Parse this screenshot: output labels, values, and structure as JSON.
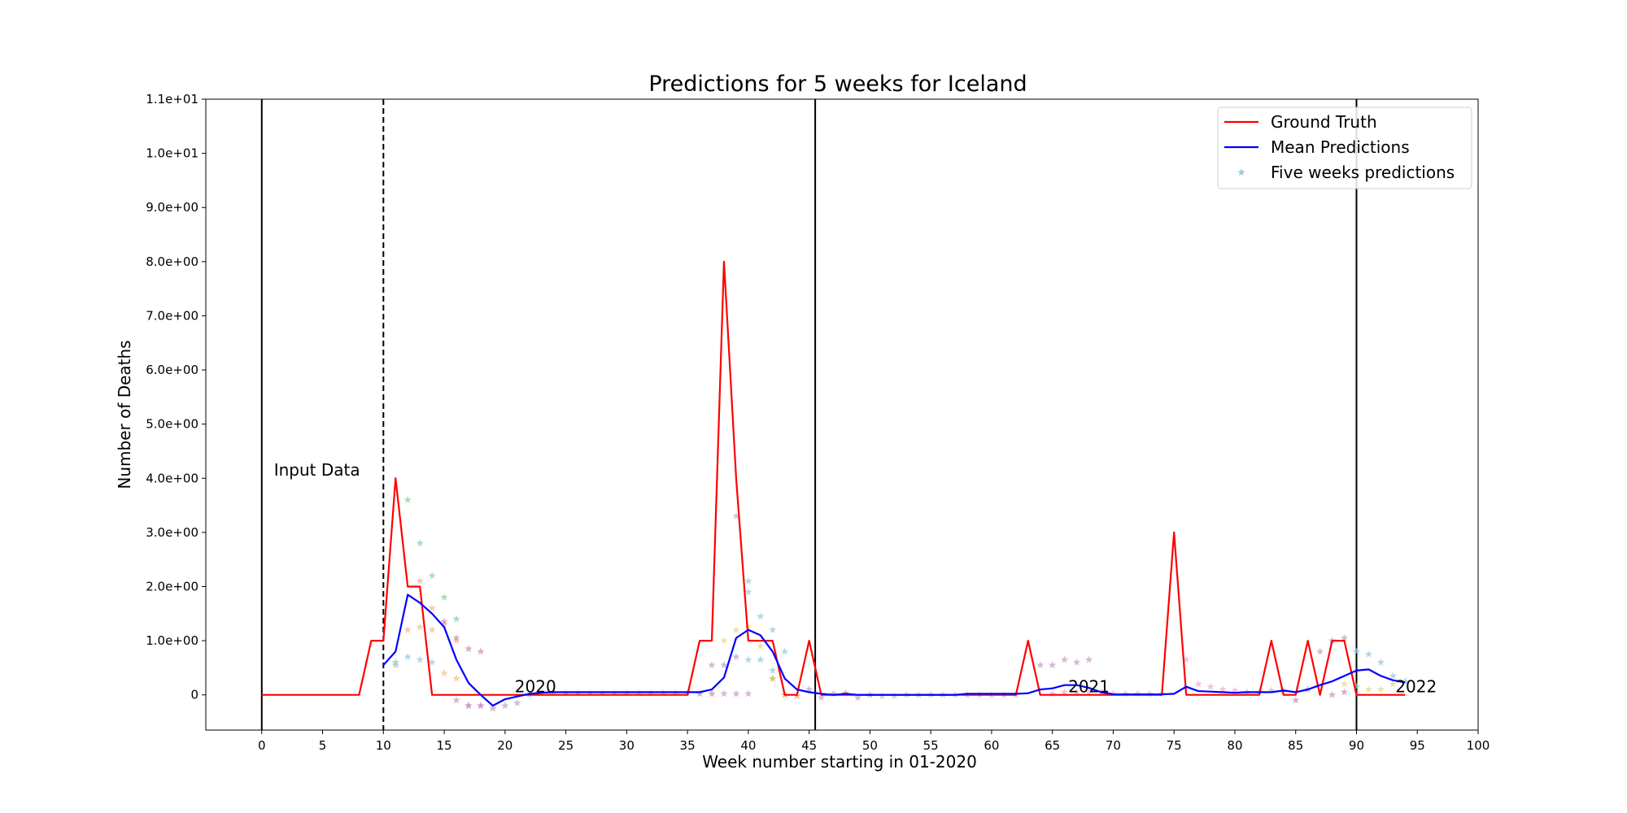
{
  "chart_data": {
    "type": "line",
    "title": "Predictions for 5 weeks for Iceland",
    "xlabel": "Week number starting in 01-2020",
    "ylabel": "Number of Deaths",
    "xlim": [
      -4.6,
      100
    ],
    "ylim": [
      -0.65,
      11
    ],
    "x_ticks": [
      0,
      5,
      10,
      15,
      20,
      25,
      30,
      35,
      40,
      45,
      50,
      55,
      60,
      65,
      70,
      75,
      80,
      85,
      90,
      95,
      100
    ],
    "y_ticks": [
      0,
      1,
      2,
      3,
      4,
      5,
      6,
      7,
      8,
      9,
      10,
      11
    ],
    "y_tick_labels": [
      "0",
      "1.0e+00",
      "2.0e+00",
      "3.0e+00",
      "4.0e+00",
      "5.0e+00",
      "6.0e+00",
      "7.0e+00",
      "8.0e+00",
      "9.0e+00",
      "1.0e+01",
      "1.1e+01"
    ],
    "grid": false,
    "legend_position": "upper right",
    "series": [
      {
        "name": "Ground Truth",
        "color": "#ff0000",
        "style": "line",
        "x": [
          0,
          1,
          2,
          3,
          4,
          5,
          6,
          7,
          8,
          9,
          10,
          11,
          12,
          13,
          14,
          15,
          16,
          17,
          18,
          19,
          20,
          21,
          22,
          23,
          24,
          25,
          26,
          27,
          28,
          29,
          30,
          31,
          32,
          33,
          34,
          35,
          36,
          37,
          38,
          39,
          40,
          41,
          42,
          43,
          44,
          45,
          46,
          47,
          48,
          49,
          50,
          51,
          52,
          53,
          54,
          55,
          56,
          57,
          58,
          59,
          60,
          61,
          62,
          63,
          64,
          65,
          66,
          67,
          68,
          69,
          70,
          71,
          72,
          73,
          74,
          75,
          76,
          77,
          78,
          79,
          80,
          81,
          82,
          83,
          84,
          85,
          86,
          87,
          88,
          89,
          90,
          91,
          92,
          93,
          94
        ],
        "values": [
          0,
          0,
          0,
          0,
          0,
          0,
          0,
          0,
          0,
          1,
          1,
          4,
          2,
          2,
          0,
          0,
          0,
          0,
          0,
          0,
          0,
          0,
          0,
          0,
          0,
          0,
          0,
          0,
          0,
          0,
          0,
          0,
          0,
          0,
          0,
          0,
          1,
          1,
          8,
          4,
          1,
          1,
          1,
          0,
          0,
          1,
          0,
          0,
          0,
          0,
          0,
          0,
          0,
          0,
          0,
          0,
          0,
          0,
          0,
          0,
          0,
          0,
          0,
          1,
          0,
          0,
          0,
          0,
          0,
          0,
          0,
          0,
          0,
          0,
          0,
          3,
          0,
          0,
          0,
          0,
          0,
          0,
          0,
          1,
          0,
          0,
          1,
          0,
          1,
          1,
          0,
          0,
          0,
          0,
          0
        ]
      },
      {
        "name": "Mean Predictions",
        "color": "#0000ff",
        "style": "line",
        "x": [
          10,
          11,
          12,
          13,
          14,
          15,
          16,
          17,
          18,
          19,
          20,
          21,
          22,
          23,
          24,
          25,
          26,
          27,
          28,
          29,
          30,
          31,
          32,
          33,
          34,
          35,
          36,
          37,
          38,
          39,
          40,
          41,
          42,
          43,
          44,
          45,
          46,
          47,
          48,
          49,
          50,
          51,
          52,
          53,
          54,
          55,
          56,
          57,
          58,
          59,
          60,
          61,
          62,
          63,
          64,
          65,
          66,
          67,
          68,
          69,
          70,
          71,
          72,
          73,
          74,
          75,
          76,
          77,
          78,
          79,
          80,
          81,
          82,
          83,
          84,
          85,
          86,
          87,
          88,
          89,
          90,
          91,
          92,
          93,
          94
        ],
        "values": [
          0.55,
          0.8,
          1.85,
          1.7,
          1.5,
          1.25,
          0.65,
          0.22,
          0,
          -0.2,
          -0.08,
          -0.03,
          0.02,
          0.04,
          0.05,
          0.05,
          0.05,
          0.05,
          0.05,
          0.05,
          0.05,
          0.05,
          0.05,
          0.05,
          0.05,
          0.05,
          0.05,
          0.1,
          0.32,
          1.05,
          1.2,
          1.1,
          0.8,
          0.3,
          0.1,
          0.05,
          0.02,
          0,
          0.02,
          0,
          0,
          0,
          0,
          0,
          0,
          0,
          0,
          0,
          0.02,
          0.02,
          0.02,
          0.02,
          0.02,
          0.03,
          0.1,
          0.12,
          0.18,
          0.18,
          0.13,
          0.05,
          0.01,
          0.01,
          0.01,
          0.01,
          0.01,
          0.02,
          0.15,
          0.07,
          0.06,
          0.05,
          0.04,
          0.05,
          0.05,
          0.05,
          0.08,
          0.05,
          0.1,
          0.18,
          0.25,
          0.35,
          0.45,
          0.47,
          0.35,
          0.27,
          0.23
        ]
      },
      {
        "name": "Five weeks predictions",
        "color": "#9ecae1",
        "style": "star-markers",
        "points": [
          [
            11,
            0.6,
            "#8fd3a0"
          ],
          [
            12,
            3.6,
            "#8fd3a0"
          ],
          [
            13,
            2.8,
            "#8fd3a0"
          ],
          [
            14,
            2.2,
            "#8fd3a0"
          ],
          [
            15,
            1.8,
            "#8fd3a0"
          ],
          [
            16,
            1.4,
            "#8fd3a0"
          ],
          [
            12,
            1.2,
            "#f5b8a0"
          ],
          [
            13,
            2.1,
            "#f5b8a0"
          ],
          [
            14,
            1.6,
            "#f5b8a0"
          ],
          [
            15,
            1.3,
            "#f5b8a0"
          ],
          [
            16,
            1.0,
            "#f5b8a0"
          ],
          [
            11,
            0.55,
            "#9ecae1"
          ],
          [
            12,
            0.7,
            "#9ecae1"
          ],
          [
            13,
            0.65,
            "#9ecae1"
          ],
          [
            14,
            0.6,
            "#9ecae1"
          ],
          [
            13,
            1.25,
            "#e8c890"
          ],
          [
            14,
            1.2,
            "#e8c890"
          ],
          [
            15,
            0.4,
            "#e8c890"
          ],
          [
            16,
            0.3,
            "#e8c890"
          ],
          [
            16,
            -0.1,
            "#c9a0c9"
          ],
          [
            17,
            -0.2,
            "#c9a0c9"
          ],
          [
            18,
            -0.2,
            "#c9a0c9"
          ],
          [
            19,
            -0.25,
            "#c9a0c9"
          ],
          [
            20,
            -0.2,
            "#c9a0c9"
          ],
          [
            21,
            -0.15,
            "#c9a0c9"
          ],
          [
            15,
            1.35,
            "#d090b8"
          ],
          [
            16,
            1.05,
            "#d090b8"
          ],
          [
            17,
            0.85,
            "#d090b8"
          ],
          [
            18,
            0.8,
            "#d090b8"
          ],
          [
            17,
            -0.2,
            "#d090b8"
          ],
          [
            18,
            -0.2,
            "#d090b8"
          ],
          [
            22,
            0,
            "#c0c0d0"
          ],
          [
            23,
            0.03,
            "#c0c0d0"
          ],
          [
            24,
            0.03,
            "#c0c0d0"
          ],
          [
            25,
            0.03,
            "#c0c0d0"
          ],
          [
            26,
            0.03,
            "#c0c0d0"
          ],
          [
            27,
            0.03,
            "#c0c0d0"
          ],
          [
            28,
            0.03,
            "#c0c0d0"
          ],
          [
            29,
            0.03,
            "#c0c0d0"
          ],
          [
            30,
            0.03,
            "#c0c0d0"
          ],
          [
            31,
            0.03,
            "#c0c0d0"
          ],
          [
            32,
            0.03,
            "#c0c0d0"
          ],
          [
            33,
            0.03,
            "#c0c0d0"
          ],
          [
            34,
            0.03,
            "#c0c0d0"
          ],
          [
            35,
            0.03,
            "#c0c0d0"
          ],
          [
            37,
            0.55,
            "#c9a0c9"
          ],
          [
            38,
            0.55,
            "#c9a0c9"
          ],
          [
            39,
            0.7,
            "#c9a0c9"
          ],
          [
            38,
            0.02,
            "#c9a0c9"
          ],
          [
            39,
            0.02,
            "#c9a0c9"
          ],
          [
            40,
            0.02,
            "#c9a0c9"
          ],
          [
            38,
            1.0,
            "#e8d890"
          ],
          [
            39,
            1.2,
            "#e8d890"
          ],
          [
            40,
            1.25,
            "#e8d890"
          ],
          [
            41,
            0.9,
            "#e8d890"
          ],
          [
            42,
            0.3,
            "#b8b850"
          ],
          [
            39,
            3.3,
            "#9ecae1"
          ],
          [
            40,
            2.1,
            "#9ecae1"
          ],
          [
            40,
            1.9,
            "#9ecae1"
          ],
          [
            41,
            1.45,
            "#9ecae1"
          ],
          [
            42,
            1.2,
            "#9ecae1"
          ],
          [
            42,
            0.45,
            "#9ecae1"
          ],
          [
            43,
            0.8,
            "#9ecae1"
          ],
          [
            40,
            0.65,
            "#9ecae1"
          ],
          [
            41,
            0.65,
            "#9ecae1"
          ],
          [
            37,
            0.02,
            "#d090b8"
          ],
          [
            36,
            0.02,
            "#d090b8"
          ],
          [
            43,
            0,
            "#e8a060"
          ],
          [
            44,
            -0.02,
            "#e8a060"
          ],
          [
            45,
            0.1,
            "#c9a0c9"
          ],
          [
            46,
            -0.05,
            "#c9a0c9"
          ],
          [
            47,
            0.02,
            "#c9a0c9"
          ],
          [
            48,
            0.03,
            "#c9a0c9"
          ],
          [
            49,
            -0.05,
            "#c9a0c9"
          ],
          [
            50,
            0,
            "#c9a0c9"
          ],
          [
            51,
            -0.02,
            "#c0c0d0"
          ],
          [
            52,
            -0.02,
            "#c0c0d0"
          ],
          [
            53,
            0.0,
            "#c0c0d0"
          ],
          [
            54,
            0.0,
            "#c0c0d0"
          ],
          [
            55,
            0.0,
            "#c0c0d0"
          ],
          [
            56,
            0.0,
            "#c0c0d0"
          ],
          [
            57,
            0.0,
            "#c0c0d0"
          ],
          [
            58,
            0.0,
            "#c0c0d0"
          ],
          [
            59,
            0.0,
            "#c0c0d0"
          ],
          [
            60,
            0.0,
            "#c0c0d0"
          ],
          [
            61,
            0.0,
            "#c0c0d0"
          ],
          [
            62,
            0.0,
            "#c0c0d0"
          ],
          [
            64,
            0.55,
            "#c9a0c9"
          ],
          [
            65,
            0.55,
            "#c9a0c9"
          ],
          [
            66,
            0.65,
            "#c9a0c9"
          ],
          [
            67,
            0.6,
            "#c9a0c9"
          ],
          [
            68,
            0.65,
            "#c9a0c9"
          ],
          [
            65,
            0.02,
            "#f0b0d0"
          ],
          [
            66,
            0.05,
            "#f0b0d0"
          ],
          [
            67,
            0.05,
            "#f0b0d0"
          ],
          [
            68,
            0.05,
            "#f0b0d0"
          ],
          [
            69,
            0.05,
            "#f0b0d0"
          ],
          [
            70,
            0.03,
            "#f0b0d0"
          ],
          [
            71,
            0.02,
            "#c0c0d0"
          ],
          [
            72,
            0.02,
            "#c0c0d0"
          ],
          [
            73,
            0.02,
            "#c0c0d0"
          ],
          [
            74,
            0.02,
            "#c0c0d0"
          ],
          [
            76,
            0.65,
            "#f0b0d0"
          ],
          [
            77,
            0.2,
            "#f0b0d0"
          ],
          [
            78,
            0.15,
            "#f0b0d0"
          ],
          [
            79,
            0.1,
            "#f0b0d0"
          ],
          [
            80,
            0.08,
            "#f0b0d0"
          ],
          [
            81,
            0.05,
            "#c0c0d0"
          ],
          [
            82,
            0.05,
            "#c0c0d0"
          ],
          [
            83,
            0.08,
            "#c0c0d0"
          ],
          [
            84,
            0.08,
            "#c0c0d0"
          ],
          [
            85,
            -0.1,
            "#d090b8"
          ],
          [
            86,
            0.1,
            "#c9a0c9"
          ],
          [
            87,
            0.8,
            "#c9a0c9"
          ],
          [
            88,
            1.0,
            "#c9a0c9"
          ],
          [
            89,
            1.05,
            "#c9a0c9"
          ],
          [
            88,
            0.0,
            "#d090b8"
          ],
          [
            89,
            0.05,
            "#d090b8"
          ],
          [
            89,
            0.2,
            "#e8d890"
          ],
          [
            90,
            0.8,
            "#9ecae1"
          ],
          [
            91,
            0.75,
            "#9ecae1"
          ],
          [
            92,
            0.6,
            "#9ecae1"
          ],
          [
            93,
            0.35,
            "#9ecae1"
          ],
          [
            94,
            0.25,
            "#9ecae1"
          ],
          [
            90,
            0.15,
            "#8fd3a0"
          ],
          [
            91,
            0.1,
            "#e8d890"
          ],
          [
            92,
            0.1,
            "#e8d890"
          ],
          [
            93,
            0.2,
            "#e8d890"
          ]
        ]
      }
    ],
    "vertical_lines": [
      {
        "x": 0,
        "style": "solid"
      },
      {
        "x": 10,
        "style": "dashed"
      },
      {
        "x": 45.5,
        "style": "solid"
      },
      {
        "x": 90,
        "style": "solid"
      }
    ],
    "annotations": [
      {
        "text": "Input Data",
        "x": 1,
        "y": 4.05
      },
      {
        "text": "2020",
        "x": 20.8,
        "y": 0.05
      },
      {
        "text": "2021",
        "x": 66.3,
        "y": 0.05
      },
      {
        "text": "2022",
        "x": 93.2,
        "y": 0.05
      }
    ]
  }
}
